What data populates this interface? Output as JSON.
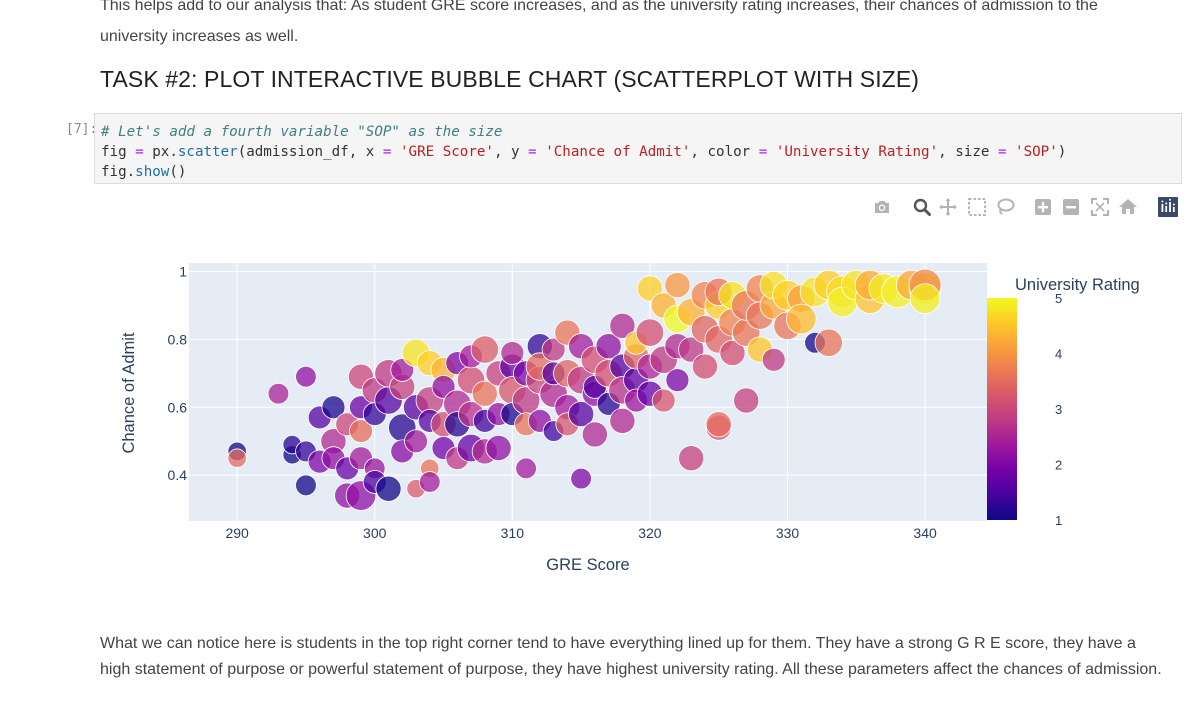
{
  "intro_text": "This helps add to our analysis that: As student GRE score increases, and as the university rating increases, their chances of admission to the university increases as well.",
  "heading": "TASK #2: PLOT INTERACTIVE BUBBLE CHART (SCATTERPLOT WITH SIZE)",
  "cell": {
    "prompt": "[7]:",
    "comment": "# Let's add a fourth variable \"SOP\" as the size",
    "line2": {
      "a": "fig ",
      "eq1": "=",
      "b": " px.",
      "fn1": "scatter",
      "c": "(admission_df, x ",
      "eq2": "=",
      "s1": " 'GRE Score'",
      "d": ", y ",
      "eq3": "=",
      "s2": " 'Chance of Admit'",
      "e": ", color ",
      "eq4": "=",
      "s3": " 'University Rating'",
      "f": ", size ",
      "eq5": "=",
      "s4": " 'SOP'",
      "g": ")"
    },
    "line3": {
      "a": "fig.",
      "fn": "show",
      "b": "()"
    }
  },
  "modebar": [
    "camera-icon",
    "zoom-icon",
    "pan-icon",
    "box-select-icon",
    "lasso-icon",
    "zoom-in-icon",
    "zoom-out-icon",
    "autoscale-icon",
    "reset-axes-icon",
    "plotly-logo-icon"
  ],
  "colors": {
    "plot_bg": "#e5ecf6",
    "colorscale": [
      "#0d0887",
      "#46039f",
      "#7201a8",
      "#9c179e",
      "#bd3786",
      "#d8576b",
      "#ed7953",
      "#fb9f3a",
      "#fdca26",
      "#f0f921"
    ]
  },
  "chart_data": {
    "type": "scatter",
    "xlabel": "GRE Score",
    "ylabel": "Chance of Admit",
    "xlim": [
      286.5,
      344.5
    ],
    "ylim": [
      0.265,
      1.025
    ],
    "xticks": [
      290,
      300,
      310,
      320,
      330,
      340
    ],
    "yticks": [
      0.4,
      0.6,
      0.8,
      1
    ],
    "ytick_labels": [
      "0.4",
      "0.6",
      "0.8",
      "1"
    ],
    "colorbar": {
      "title": "University Rating",
      "ticks": [
        "1",
        "2",
        "3",
        "4",
        "5"
      ],
      "range": [
        1,
        5
      ]
    },
    "size_variable_range": [
      1,
      5
    ],
    "points_note": "x, y, rating, sop",
    "points": [
      [
        290,
        0.47,
        1,
        2
      ],
      [
        290,
        0.45,
        3.5,
        2
      ],
      [
        293,
        0.64,
        2.5,
        2.5
      ],
      [
        294,
        0.46,
        1,
        2
      ],
      [
        294,
        0.49,
        1.2,
        2
      ],
      [
        295,
        0.37,
        1,
        2.5
      ],
      [
        295,
        0.47,
        1.3,
        2.5
      ],
      [
        295,
        0.69,
        2.2,
        2.5
      ],
      [
        296,
        0.57,
        1.6,
        3
      ],
      [
        296,
        0.44,
        2,
        3
      ],
      [
        297,
        0.6,
        1.1,
        3
      ],
      [
        297,
        0.5,
        2.6,
        3.5
      ],
      [
        297,
        0.45,
        2.2,
        3
      ],
      [
        298,
        0.55,
        3,
        3
      ],
      [
        298,
        0.34,
        2.2,
        3.5
      ],
      [
        298,
        0.42,
        1.8,
        3
      ],
      [
        299,
        0.69,
        3,
        3.5
      ],
      [
        299,
        0.53,
        3.5,
        3
      ],
      [
        299,
        0.34,
        2.2,
        4.5
      ],
      [
        299,
        0.6,
        1.8,
        3
      ],
      [
        299,
        0.45,
        2.4,
        3
      ],
      [
        300,
        0.65,
        2.8,
        3.5
      ],
      [
        300,
        0.58,
        1.3,
        3
      ],
      [
        300,
        0.42,
        2.3,
        2.5
      ],
      [
        300,
        0.38,
        1.5,
        3
      ],
      [
        301,
        0.62,
        1.6,
        4
      ],
      [
        301,
        0.7,
        2.8,
        4
      ],
      [
        301,
        0.36,
        1,
        3.5
      ],
      [
        302,
        0.54,
        1.2,
        4
      ],
      [
        302,
        0.66,
        2.9,
        3.5
      ],
      [
        302,
        0.47,
        2.1,
        3
      ],
      [
        302,
        0.71,
        2.4,
        3
      ],
      [
        303,
        0.36,
        3.3,
        2
      ],
      [
        303,
        0.76,
        4.8,
        4
      ],
      [
        303,
        0.6,
        1.6,
        3.5
      ],
      [
        303,
        0.5,
        2.4,
        3
      ],
      [
        304,
        0.73,
        4.6,
        3.5
      ],
      [
        304,
        0.62,
        2.9,
        4
      ],
      [
        304,
        0.42,
        3.6,
        2
      ],
      [
        304,
        0.38,
        2.4,
        2.5
      ],
      [
        304,
        0.56,
        1.6,
        3
      ],
      [
        305,
        0.71,
        4.3,
        3.5
      ],
      [
        305,
        0.55,
        3.1,
        3.5
      ],
      [
        305,
        0.66,
        2.2,
        3
      ],
      [
        305,
        0.48,
        1.9,
        3
      ],
      [
        306,
        0.61,
        2.6,
        4
      ],
      [
        306,
        0.73,
        2,
        3
      ],
      [
        306,
        0.55,
        1.2,
        3.5
      ],
      [
        306,
        0.45,
        2.8,
        3
      ],
      [
        307,
        0.68,
        3.1,
        4
      ],
      [
        307,
        0.58,
        2.7,
        3.5
      ],
      [
        307,
        0.48,
        1.8,
        4
      ],
      [
        307,
        0.75,
        2.4,
        3
      ],
      [
        308,
        0.77,
        3.3,
        4
      ],
      [
        308,
        0.64,
        3.6,
        3.5
      ],
      [
        308,
        0.47,
        2.6,
        3.5
      ],
      [
        308,
        0.56,
        1.4,
        3
      ],
      [
        309,
        0.7,
        2.9,
        3.5
      ],
      [
        309,
        0.58,
        2.2,
        3
      ],
      [
        309,
        0.48,
        2.2,
        3.5
      ],
      [
        310,
        0.72,
        1.7,
        3.5
      ],
      [
        310,
        0.65,
        3.2,
        4
      ],
      [
        310,
        0.58,
        1.1,
        3
      ],
      [
        310,
        0.76,
        2.6,
        3
      ],
      [
        311,
        0.7,
        2,
        3.5
      ],
      [
        311,
        0.62,
        2.8,
        4
      ],
      [
        311,
        0.55,
        3.6,
        3
      ],
      [
        311,
        0.42,
        2.4,
        2.5
      ],
      [
        312,
        0.78,
        1.3,
        3.5
      ],
      [
        312,
        0.68,
        3,
        4
      ],
      [
        312,
        0.56,
        2.2,
        3
      ],
      [
        312,
        0.72,
        3.5,
        4
      ],
      [
        313,
        0.64,
        2.6,
        4
      ],
      [
        313,
        0.77,
        2.8,
        3
      ],
      [
        313,
        0.53,
        1.4,
        2.5
      ],
      [
        313,
        0.7,
        1.6,
        3
      ],
      [
        314,
        0.82,
        3.6,
        3.5
      ],
      [
        314,
        0.7,
        3.4,
        4
      ],
      [
        314,
        0.6,
        2.4,
        3.5
      ],
      [
        314,
        0.55,
        3.2,
        3
      ],
      [
        315,
        0.78,
        2.4,
        3.5
      ],
      [
        315,
        0.68,
        2.8,
        4
      ],
      [
        315,
        0.58,
        1.6,
        3.5
      ],
      [
        315,
        0.39,
        2,
        2.5
      ],
      [
        316,
        0.74,
        3.1,
        4
      ],
      [
        316,
        0.64,
        2.2,
        3.5
      ],
      [
        316,
        0.52,
        2.6,
        3.5
      ],
      [
        316,
        0.66,
        1.6,
        3
      ],
      [
        317,
        0.7,
        3.1,
        4
      ],
      [
        317,
        0.61,
        1.2,
        3
      ],
      [
        317,
        0.78,
        2.2,
        3.5
      ],
      [
        318,
        0.72,
        1.6,
        3.5
      ],
      [
        318,
        0.65,
        2.7,
        4
      ],
      [
        318,
        0.84,
        2.6,
        3.5
      ],
      [
        318,
        0.56,
        2.6,
        3.5
      ],
      [
        319,
        0.68,
        1.7,
        3.5
      ],
      [
        319,
        0.75,
        3.4,
        3.5
      ],
      [
        319,
        0.62,
        2.3,
        3
      ],
      [
        319,
        0.79,
        4.5,
        3
      ],
      [
        320,
        0.72,
        2.5,
        3.5
      ],
      [
        320,
        0.82,
        3.1,
        4
      ],
      [
        320,
        0.64,
        1.8,
        3.5
      ],
      [
        320,
        0.95,
        4.6,
        3.5
      ],
      [
        321,
        0.9,
        4.3,
        3.5
      ],
      [
        321,
        0.74,
        2.8,
        4
      ],
      [
        321,
        0.62,
        3.2,
        3
      ],
      [
        322,
        0.86,
        5,
        4
      ],
      [
        322,
        0.78,
        2.6,
        3.5
      ],
      [
        322,
        0.68,
        2,
        3
      ],
      [
        322,
        0.96,
        4,
        3.5
      ],
      [
        323,
        0.45,
        2.9,
        3.5
      ],
      [
        323,
        0.88,
        4.3,
        4
      ],
      [
        323,
        0.77,
        2.8,
        3.5
      ],
      [
        324,
        0.93,
        3.8,
        4
      ],
      [
        324,
        0.83,
        3.4,
        4
      ],
      [
        324,
        0.72,
        3.1,
        3.5
      ],
      [
        325,
        0.54,
        3.2,
        3.5
      ],
      [
        325,
        0.55,
        3.5,
        3.5
      ],
      [
        325,
        0.9,
        4.6,
        4
      ],
      [
        325,
        0.8,
        3.4,
        4
      ],
      [
        325,
        0.94,
        3.6,
        4
      ],
      [
        326,
        0.76,
        3.1,
        3.5
      ],
      [
        326,
        0.85,
        3.8,
        4
      ],
      [
        326,
        0.93,
        4.8,
        4
      ],
      [
        327,
        0.62,
        2.9,
        3.5
      ],
      [
        327,
        0.82,
        3.6,
        4
      ],
      [
        327,
        0.9,
        3.6,
        4.5
      ],
      [
        328,
        0.77,
        4.5,
        3.5
      ],
      [
        328,
        0.95,
        3.8,
        4
      ],
      [
        328,
        0.87,
        3.6,
        4
      ],
      [
        329,
        0.74,
        2.8,
        3
      ],
      [
        329,
        0.9,
        4.2,
        4
      ],
      [
        329,
        0.96,
        4.8,
        4
      ],
      [
        330,
        0.84,
        3.6,
        4
      ],
      [
        330,
        0.93,
        4.6,
        4.5
      ],
      [
        331,
        0.92,
        4.1,
        4
      ],
      [
        331,
        0.86,
        4.4,
        4.5
      ],
      [
        332,
        0.79,
        1,
        2.5
      ],
      [
        332,
        0.94,
        4.8,
        4.5
      ],
      [
        333,
        0.79,
        3.6,
        4
      ],
      [
        333,
        0.96,
        4.6,
        4.5
      ],
      [
        334,
        0.94,
        4.7,
        5
      ],
      [
        334,
        0.91,
        4.9,
        4.5
      ],
      [
        335,
        0.96,
        4.8,
        4.5
      ],
      [
        336,
        0.92,
        4.5,
        4.5
      ],
      [
        336,
        0.96,
        4.2,
        4.5
      ],
      [
        337,
        0.95,
        4.9,
        4.5
      ],
      [
        338,
        0.94,
        4.9,
        5
      ],
      [
        339,
        0.96,
        4.2,
        4.5
      ],
      [
        340,
        0.95,
        4.8,
        5
      ],
      [
        340,
        0.96,
        3.8,
        5
      ],
      [
        340,
        0.92,
        4.9,
        4.5
      ]
    ]
  },
  "outro_text": "What we can notice here is students in the top right corner tend to have everything lined up for them. They have a strong G R E score, they have a high statement of purpose or powerful statement of purpose, they have highest university rating. All these parameters affect the chances of admission."
}
